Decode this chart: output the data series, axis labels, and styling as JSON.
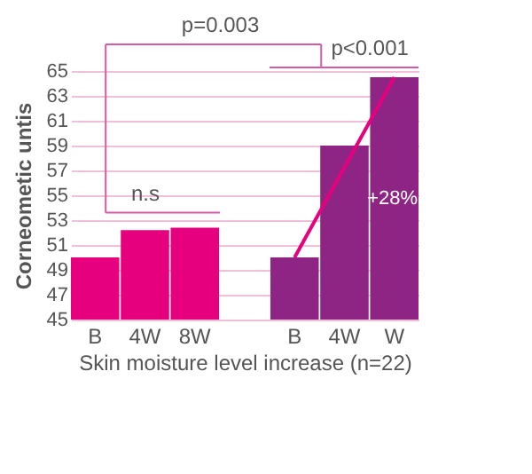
{
  "chart_data": {
    "type": "bar",
    "ylabel": "Corneometic untis",
    "xlabel": "Skin moisture level increase (n=22)",
    "categories": [
      "B",
      "4W",
      "8W",
      null,
      "B",
      "4W",
      "W"
    ],
    "series": [
      {
        "colors": [
          "#e6007e",
          "#e6007e",
          "#e6007e",
          "#ffffff",
          "#8e2585",
          "#8e2585",
          "#8e2585"
        ],
        "values": [
          50,
          52.2,
          52.4,
          null,
          50,
          59,
          64.5
        ]
      },
      {
        "type": "line",
        "color": "#e6007e",
        "values": [
          null,
          null,
          null,
          null,
          50,
          null,
          64.5
        ]
      }
    ],
    "ylim": [
      45,
      65
    ],
    "yticks": [
      45,
      47,
      49,
      51,
      53,
      55,
      57,
      59,
      61,
      63,
      65
    ],
    "grid": "y",
    "annotations": [
      "p=0.003",
      "p<0.001",
      "n.s",
      "+28%"
    ]
  }
}
